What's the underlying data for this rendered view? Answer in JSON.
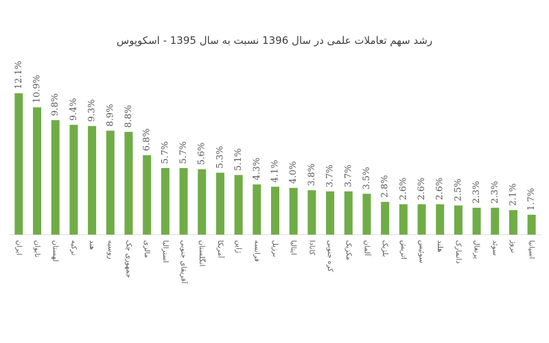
{
  "chart_data": {
    "type": "bar",
    "title": "رشد سهم تعاملات علمی در سال 1396 نسبت به سال 1395 - اسکوپوس",
    "categories": [
      "ایران",
      "تایوان",
      "لهستان",
      "ترکیه",
      "هند",
      "روسیه",
      "جمهوری چک",
      "مالزی",
      "استرالیا",
      "آفریقای جنوبی",
      "انگلستان",
      "آمریکا",
      "ژاپن",
      "فرانسه",
      "برزیل",
      "ایتالیا",
      "کانادا",
      "کره جنوبی",
      "مکزیک",
      "آلمان",
      "بلژیک",
      "اتریش",
      "سوئیس",
      "هلند",
      "دانمارک",
      "پرتغال",
      "سوئد",
      "نروژ",
      "اسپانیا"
    ],
    "values": [
      12.1,
      10.9,
      9.8,
      9.4,
      9.3,
      8.9,
      8.8,
      6.8,
      5.7,
      5.7,
      5.6,
      5.3,
      5.1,
      4.3,
      4.1,
      4.0,
      3.8,
      3.7,
      3.7,
      3.5,
      2.8,
      2.6,
      2.6,
      2.6,
      2.5,
      2.3,
      2.3,
      2.1,
      1.7
    ],
    "value_labels": [
      "12.1%",
      "10.9%",
      "9.8%",
      "9.4%",
      "9.3%",
      "8.9%",
      "8.8%",
      "6.8%",
      "5.7%",
      "5.7%",
      "5.6%",
      "5.3%",
      "5.1%",
      "4.3%",
      "4.1%",
      "4.0%",
      "3.8%",
      "3.7%",
      "3.7%",
      "3.5%",
      "2.8%",
      "2.6%",
      "2.6%",
      "2.6%",
      "2.5%",
      "2.3%",
      "2.3%",
      "2.1%",
      "1.7%"
    ],
    "color": "#70ad47"
  }
}
